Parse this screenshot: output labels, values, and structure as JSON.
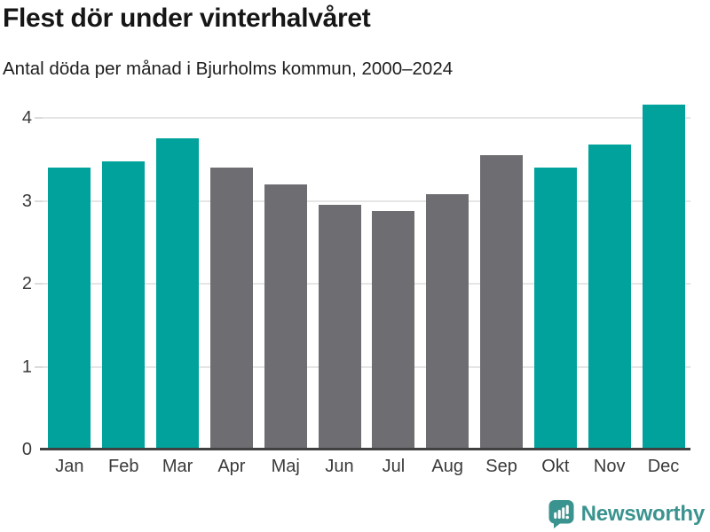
{
  "header": {
    "title": "Flest dör under vinterhalvåret",
    "subtitle": "Antal döda per månad i Bjurholms kommun, 2000–2024"
  },
  "chart_data": {
    "type": "bar",
    "title": "Flest dör under vinterhalvåret",
    "subtitle": "Antal döda per månad i Bjurholms kommun, 2000–2024",
    "categories": [
      "Jan",
      "Feb",
      "Mar",
      "Apr",
      "Maj",
      "Jun",
      "Jul",
      "Aug",
      "Sep",
      "Okt",
      "Nov",
      "Dec"
    ],
    "values": [
      3.4,
      3.48,
      3.76,
      3.4,
      3.2,
      2.96,
      2.88,
      3.08,
      3.56,
      3.4,
      3.68,
      4.16
    ],
    "bar_colors": [
      "teal",
      "teal",
      "teal",
      "gray",
      "gray",
      "gray",
      "gray",
      "gray",
      "gray",
      "teal",
      "teal",
      "teal"
    ],
    "xlabel": "",
    "ylabel": "",
    "ylim": [
      0,
      4.25
    ],
    "yticks": [
      0,
      1,
      2,
      3,
      4
    ],
    "grid": true,
    "legend": "none",
    "highlight_meaning": "teal = winter half-year months, gray = summer half-year months"
  },
  "colors": {
    "teal": "#00a29b",
    "gray": "#6e6e72",
    "gridline": "#e6e6e6",
    "axis": "#414141",
    "logo_teal": "#3a938e"
  },
  "footer": {
    "brand": "Newsworthy",
    "logo_icon": "newsworthy-speech-bubble-barchart-icon"
  }
}
